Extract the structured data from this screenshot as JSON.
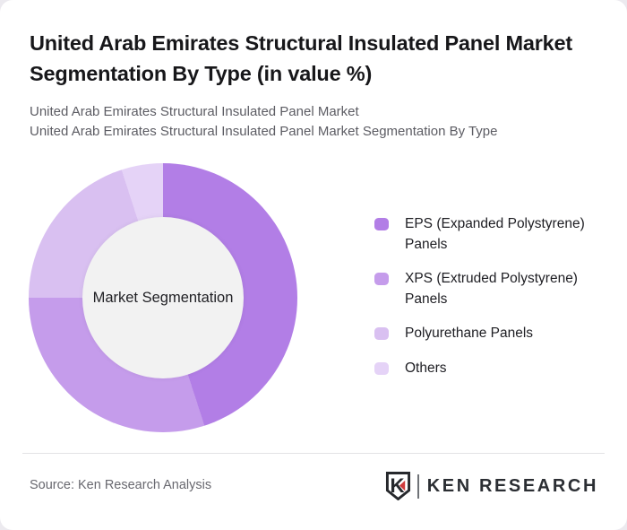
{
  "card": {
    "title": "United Arab Emirates Structural Insulated Panel Market Segmentation By Type (in value %)",
    "subtitle_line1": "United Arab Emirates Structural Insulated Panel Market",
    "subtitle_line2": "United Arab Emirates Structural Insulated Panel Market Segmentation By Type",
    "source": "Source: Ken Research Analysis",
    "brand": {
      "name": "KEN RESEARCH",
      "accent_color": "#cf3a3c",
      "text_color": "#2b2e33"
    }
  },
  "chart_data": {
    "type": "pie",
    "variant": "donut",
    "title": "United Arab Emirates Structural Insulated Panel Market Segmentation By Type (in value %)",
    "unit": "value %",
    "start_angle_deg": 0,
    "direction": "clockwise",
    "center_label": "Market Segmentation",
    "center_bg": "#f2f2f2",
    "legend_position": "right",
    "segments": [
      {
        "label": "EPS (Expanded Polystyrene) Panels",
        "value": 45,
        "color": "#b27ee6"
      },
      {
        "label": "XPS (Extruded Polystyrene) Panels",
        "value": 30,
        "color": "#c59ceb"
      },
      {
        "label": "Polyurethane Panels",
        "value": 20,
        "color": "#d9c0f1"
      },
      {
        "label": "Others",
        "value": 5,
        "color": "#e5d3f7"
      }
    ]
  }
}
